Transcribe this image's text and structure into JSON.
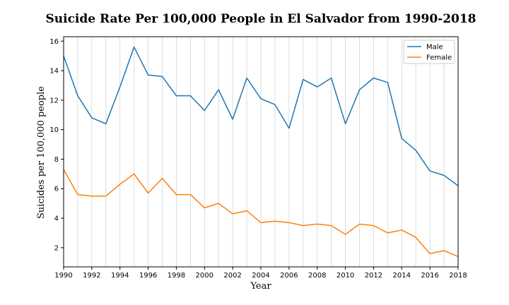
{
  "chart_data": {
    "type": "line",
    "title": "Suicide Rate Per 100,000 People in El Salvador from 1990-2018",
    "xlabel": "Year",
    "ylabel": "Suicides per 100,000 people",
    "xlim": [
      1990,
      2018
    ],
    "ylim": [
      0.7,
      16.3
    ],
    "xticks": [
      1990,
      1992,
      1994,
      1996,
      1998,
      2000,
      2002,
      2004,
      2006,
      2008,
      2010,
      2012,
      2014,
      2016,
      2018
    ],
    "yticks": [
      2,
      4,
      6,
      8,
      10,
      12,
      14,
      16
    ],
    "x_grid": true,
    "legend_position": "top-right",
    "x": [
      1990,
      1991,
      1992,
      1993,
      1994,
      1995,
      1996,
      1997,
      1998,
      1999,
      2000,
      2001,
      2002,
      2003,
      2004,
      2005,
      2006,
      2007,
      2008,
      2009,
      2010,
      2011,
      2012,
      2013,
      2014,
      2015,
      2016,
      2017,
      2018
    ],
    "series": [
      {
        "name": "Male",
        "color": "#1f77b4",
        "values": [
          15.0,
          12.3,
          10.8,
          10.4,
          12.9,
          15.6,
          13.7,
          13.6,
          12.3,
          12.3,
          11.3,
          12.7,
          10.7,
          13.5,
          12.1,
          11.7,
          10.1,
          13.4,
          12.9,
          13.5,
          10.4,
          12.7,
          13.5,
          13.2,
          9.4,
          8.6,
          7.2,
          6.9,
          6.2
        ]
      },
      {
        "name": "Female",
        "color": "#ff7f0e",
        "values": [
          7.3,
          5.6,
          5.5,
          5.5,
          6.3,
          7.0,
          5.7,
          6.7,
          5.6,
          5.6,
          4.7,
          5.0,
          4.3,
          4.5,
          3.7,
          3.8,
          3.7,
          3.5,
          3.6,
          3.5,
          2.9,
          3.6,
          3.5,
          3.0,
          3.2,
          2.7,
          1.6,
          1.8,
          1.4
        ]
      }
    ]
  }
}
